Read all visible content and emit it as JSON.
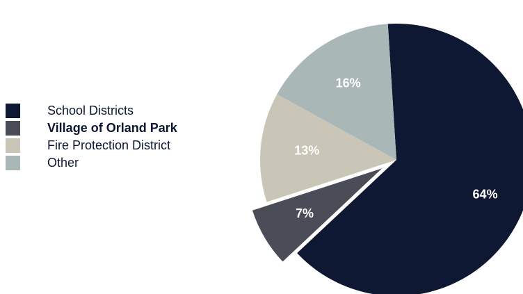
{
  "chart_data": {
    "type": "pie",
    "title": "",
    "legend_position": "left",
    "slices": [
      {
        "name": "School Districts",
        "value": 64,
        "label": "64%",
        "color": "#0f1832",
        "emphasis": false,
        "exploded": false
      },
      {
        "name": "Village of Orland Park",
        "value": 7,
        "label": "7%",
        "color": "#4a4c57",
        "emphasis": true,
        "exploded": true
      },
      {
        "name": "Fire Protection District",
        "value": 13,
        "label": "13%",
        "color": "#c9c6b7",
        "emphasis": false,
        "exploded": false
      },
      {
        "name": "Other",
        "value": 16,
        "label": "16%",
        "color": "#a9b8b7",
        "emphasis": false,
        "exploded": false
      }
    ]
  }
}
